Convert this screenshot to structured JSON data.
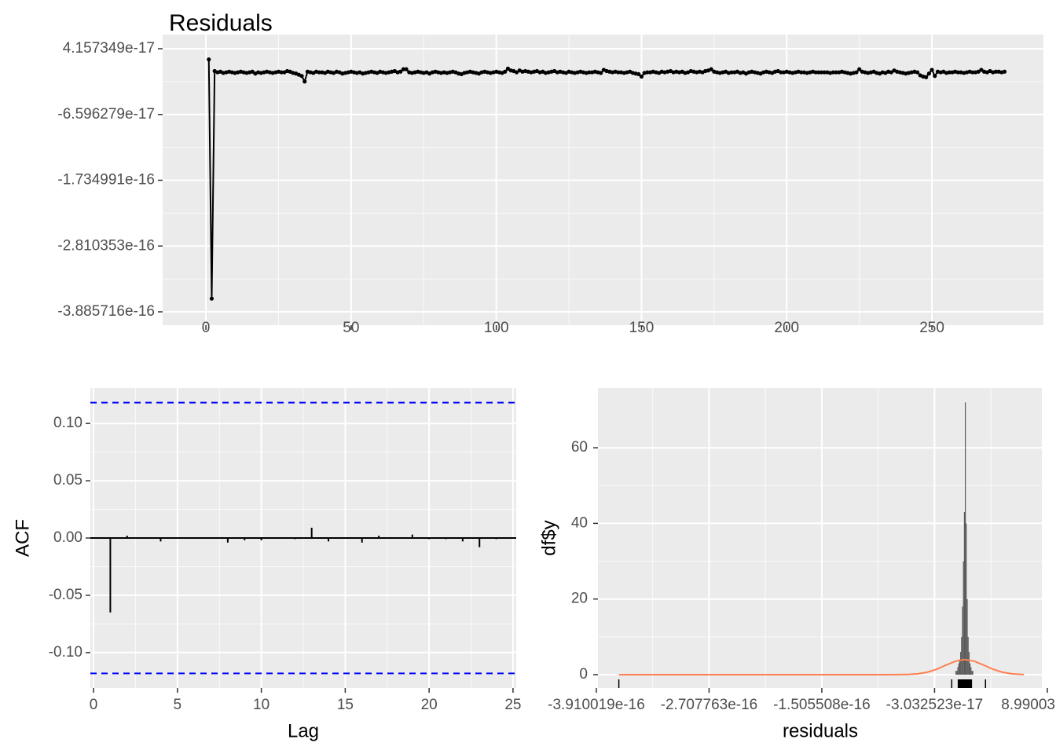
{
  "chart_data": [
    {
      "type": "line",
      "title": "Residuals",
      "x": [
        1,
        2,
        3,
        4,
        5,
        6,
        7,
        8,
        9,
        10,
        11,
        12,
        13,
        14,
        15,
        16,
        17,
        18,
        19,
        20,
        21,
        22,
        23,
        24,
        25,
        26,
        27,
        28,
        29,
        30,
        31,
        32,
        33,
        34,
        35,
        36,
        37,
        38,
        39,
        40,
        41,
        42,
        43,
        44,
        45,
        46,
        47,
        48,
        49,
        50,
        51,
        52,
        53,
        54,
        55,
        56,
        57,
        58,
        59,
        60,
        61,
        62,
        63,
        64,
        65,
        66,
        67,
        68,
        69,
        70,
        71,
        72,
        73,
        74,
        75,
        76,
        77,
        78,
        79,
        80,
        81,
        82,
        83,
        84,
        85,
        86,
        87,
        88,
        89,
        90,
        91,
        92,
        93,
        94,
        95,
        96,
        97,
        98,
        99,
        100,
        101,
        102,
        103,
        104,
        105,
        106,
        107,
        108,
        109,
        110,
        111,
        112,
        113,
        114,
        115,
        116,
        117,
        118,
        119,
        120,
        121,
        122,
        123,
        124,
        125,
        126,
        127,
        128,
        129,
        130,
        131,
        132,
        133,
        134,
        135,
        136,
        137,
        138,
        139,
        140,
        141,
        142,
        143,
        144,
        145,
        146,
        147,
        148,
        149,
        150,
        151,
        152,
        153,
        154,
        155,
        156,
        157,
        158,
        159,
        160,
        161,
        162,
        163,
        164,
        165,
        166,
        167,
        168,
        169,
        170,
        171,
        172,
        173,
        174,
        175,
        176,
        177,
        178,
        179,
        180,
        181,
        182,
        183,
        184,
        185,
        186,
        187,
        188,
        189,
        190,
        191,
        192,
        193,
        194,
        195,
        196,
        197,
        198,
        199,
        200,
        201,
        202,
        203,
        204,
        205,
        206,
        207,
        208,
        209,
        210,
        211,
        212,
        213,
        214,
        215,
        216,
        217,
        218,
        219,
        220,
        221,
        222,
        223,
        224,
        225,
        226,
        227,
        228,
        229,
        230,
        231,
        232,
        233,
        234,
        235,
        236,
        237,
        238,
        239,
        240,
        241,
        242,
        243,
        244,
        245,
        246,
        247,
        248,
        249,
        250,
        251,
        252,
        253,
        254,
        255,
        256,
        257,
        258,
        259,
        260,
        261,
        262,
        263,
        264,
        265,
        266,
        267,
        268,
        269,
        270,
        271,
        272,
        273,
        274,
        275
      ],
      "series": [
        {
          "color": "#000000",
          "values": [
            2.4e-17,
            -3.67e-16,
            5e-18,
            3e-18,
            4e-18,
            2e-18,
            3e-18,
            4e-18,
            3e-18,
            2e-18,
            3e-18,
            4e-18,
            3e-18,
            2e-18,
            3e-18,
            4e-18,
            1e-18,
            3e-18,
            2e-18,
            3e-18,
            4e-18,
            3e-18,
            2e-18,
            3e-18,
            4e-18,
            3e-18,
            3e-18,
            5e-18,
            4e-18,
            2e-18,
            1e-18,
            -1e-18,
            -3e-18,
            -1.2e-17,
            4e-18,
            3e-18,
            2e-18,
            4e-18,
            3e-18,
            3e-18,
            2e-18,
            4e-18,
            3e-18,
            2e-18,
            4e-18,
            3e-18,
            1e-18,
            2e-18,
            3e-18,
            4e-18,
            3e-18,
            2e-18,
            3e-18,
            1e-18,
            2e-18,
            3e-18,
            4e-18,
            3e-18,
            2e-18,
            4e-18,
            3e-18,
            2e-18,
            3e-18,
            4e-18,
            5e-18,
            3e-18,
            4e-18,
            8e-18,
            8e-18,
            3e-18,
            2e-18,
            3e-18,
            4e-18,
            3e-18,
            2e-18,
            3e-18,
            1e-18,
            3e-18,
            4e-18,
            3e-18,
            2e-18,
            3e-18,
            2e-18,
            3e-18,
            4e-18,
            3e-18,
            1e-18,
            0,
            2e-18,
            3e-18,
            4e-18,
            3e-18,
            2e-18,
            1e-18,
            3e-18,
            4e-18,
            3e-18,
            2e-18,
            3e-18,
            4e-18,
            3e-18,
            2e-18,
            4e-18,
            9e-18,
            6e-18,
            5e-18,
            3e-18,
            6e-18,
            4e-18,
            5e-18,
            4e-18,
            3e-18,
            4e-18,
            5e-18,
            3e-18,
            4e-18,
            2e-18,
            3e-18,
            4e-18,
            5e-18,
            3e-18,
            4e-18,
            3e-18,
            2e-18,
            4e-18,
            3e-18,
            2e-18,
            3e-18,
            4e-18,
            3e-18,
            2e-18,
            3e-18,
            3e-18,
            4e-18,
            3e-18,
            2e-18,
            7e-18,
            5e-18,
            4e-18,
            3e-18,
            4e-18,
            3e-18,
            3e-18,
            2e-18,
            3e-18,
            4e-18,
            2e-18,
            1e-18,
            0,
            -4e-18,
            2e-18,
            3e-18,
            3e-18,
            4e-18,
            3e-18,
            2e-18,
            4e-18,
            3e-18,
            4e-18,
            5e-18,
            3e-18,
            4e-18,
            3e-18,
            4e-18,
            2e-18,
            3e-18,
            5e-18,
            4e-18,
            3e-18,
            4e-18,
            3e-18,
            5e-18,
            6e-18,
            8e-18,
            4e-18,
            3e-18,
            2e-18,
            3e-18,
            4e-18,
            2e-18,
            3e-18,
            3e-18,
            4e-18,
            2e-18,
            3e-18,
            1e-18,
            3e-18,
            4e-18,
            3e-18,
            2e-18,
            1e-18,
            3e-18,
            4e-18,
            3e-18,
            2e-18,
            4e-18,
            5e-18,
            3e-18,
            3e-18,
            4e-18,
            3e-18,
            2e-18,
            3e-18,
            4e-18,
            3e-18,
            3e-18,
            2e-18,
            3e-18,
            4e-18,
            3e-18,
            3e-18,
            3e-18,
            3e-18,
            3e-18,
            2e-18,
            3e-18,
            3e-18,
            3e-18,
            4e-18,
            3e-18,
            2e-18,
            1e-18,
            2e-18,
            3e-18,
            8e-18,
            4e-18,
            3e-18,
            2e-18,
            3e-18,
            4e-18,
            2e-18,
            1e-18,
            3e-18,
            2e-18,
            4e-18,
            3e-18,
            6e-18,
            4e-18,
            3e-18,
            2e-18,
            1e-18,
            2e-18,
            3e-18,
            4e-18,
            3e-18,
            -2e-18,
            -4e-18,
            -5e-18,
            1e-18,
            7e-18,
            -3e-18,
            4e-18,
            3e-18,
            4e-18,
            2e-18,
            3e-18,
            3e-18,
            4e-18,
            3e-18,
            3e-18,
            2e-18,
            3e-18,
            4e-18,
            3e-18,
            3e-18,
            4e-18,
            7e-18,
            4e-18,
            3e-18,
            5e-18,
            3e-18,
            4e-18,
            4e-18,
            3e-18,
            4e-18
          ]
        }
      ],
      "xlim": [
        -14.9,
        288.4
      ],
      "xticks": [
        0,
        50,
        100,
        150,
        200,
        250
      ],
      "ylim": [
        -4.104e-16,
        6.47e-17
      ],
      "yticks": [
        4.157349e-17,
        -6.596279e-17,
        -1.734991e-16,
        -2.810353e-16,
        -3.885716e-16
      ],
      "grid": true
    },
    {
      "type": "acf",
      "x_label": "Lag",
      "y_label": "ACF",
      "x": [
        1,
        2,
        3,
        4,
        5,
        6,
        7,
        8,
        9,
        10,
        11,
        12,
        13,
        14,
        15,
        16,
        17,
        18,
        19,
        20,
        21,
        22,
        23,
        24
      ],
      "values": [
        -0.065,
        0.002,
        0,
        -0.003,
        0,
        0,
        0,
        -0.004,
        -0.002,
        -0.002,
        0,
        -0.001,
        0.009,
        -0.003,
        0,
        -0.004,
        0.002,
        0,
        0.003,
        -0.001,
        -0.001,
        -0.003,
        -0.008,
        -0.001
      ],
      "color": "#000000",
      "confidence_bounds": [
        0.1182,
        -0.1182
      ],
      "bound_color": "#0000ff",
      "xlim": [
        -0.19,
        25.19
      ],
      "xticks": [
        0,
        5,
        10,
        15,
        20,
        25
      ],
      "ylim": [
        -0.131,
        0.131
      ],
      "yticks": [
        {
          "value": -0.1,
          "label": "-0.10"
        },
        {
          "value": -0.05,
          "label": "-0.05"
        },
        {
          "value": 0,
          "label": "0.00"
        },
        {
          "value": 0.05,
          "label": "0.05"
        },
        {
          "value": 0.1,
          "label": "0.10"
        }
      ],
      "grid": true
    },
    {
      "type": "histogram",
      "x_label": "residuals",
      "y_label": "df$y",
      "bins": [
        -1e-17,
        -9e-18,
        -8e-18,
        -7e-18,
        -6e-18,
        -5e-18,
        -4e-18,
        -3e-18,
        -2e-18,
        -1e-18,
        0,
        1e-18,
        2e-18,
        3e-18,
        4e-18,
        5e-18,
        6e-18,
        7e-18,
        8e-18,
        9e-18,
        1e-17,
        1.1e-17,
        1.2e-17,
        1.3e-17,
        1.4e-17
      ],
      "values": [
        0,
        0,
        1,
        1,
        2,
        3,
        4,
        6,
        10,
        18,
        30,
        43,
        72,
        40,
        20,
        10,
        6,
        3,
        2,
        1,
        1,
        0,
        0,
        0
      ],
      "color": "#595959",
      "curve": {
        "color": "#ff7f50",
        "x": [
          -3.67e-16,
          -1.5e-16,
          -1e-16,
          -8e-17,
          -5.8e-17,
          -4.8e-17,
          -3.8e-17,
          -2.8e-17,
          -1.8e-17,
          -8e-18,
          2e-18,
          1.2e-17,
          2.2e-17,
          3.2e-17,
          4.2e-17,
          5.2e-17,
          6.2e-17,
          6.5e-17
        ],
        "y": [
          0,
          0,
          0,
          0,
          0.07,
          0.24,
          0.65,
          1.44,
          2.54,
          3.57,
          4.0,
          3.57,
          2.54,
          1.44,
          0.65,
          0.24,
          0.07,
          0.05
        ]
      },
      "xlim": [
        -3.893e-16,
        8.41e-17
      ],
      "xticks": [
        -3.910019e-16,
        -2.707763e-16,
        -1.505508e-16,
        -3.032523e-17,
        8.990032e-17
      ],
      "ylim": [
        -3.53,
        75.8
      ],
      "yticks": [
        0,
        20,
        40,
        60
      ],
      "grid": true
    }
  ]
}
